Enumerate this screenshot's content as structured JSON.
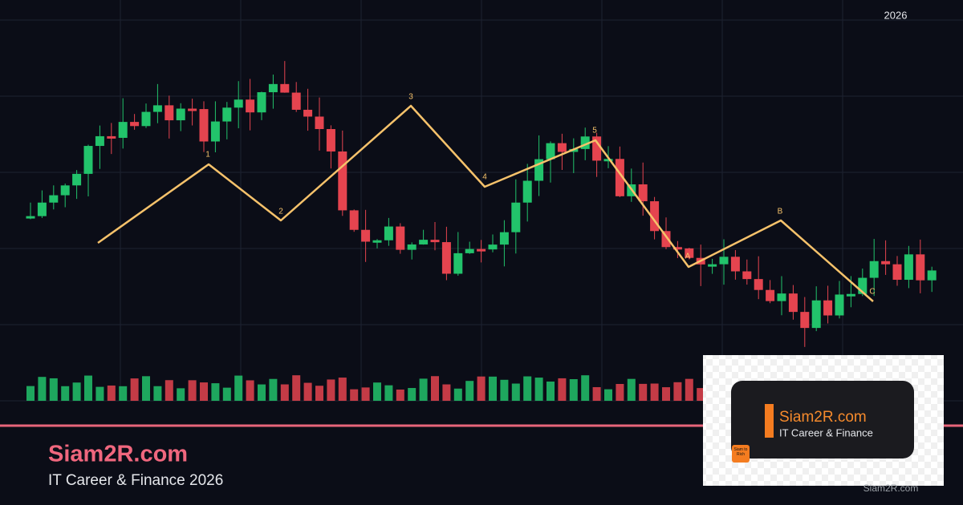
{
  "header": {
    "year": "2026"
  },
  "wave_labels": [
    "1",
    "2",
    "3",
    "4",
    "5",
    "A",
    "B",
    "C"
  ],
  "brand": {
    "name": "Siam2R.com",
    "tagline": "IT Career & Finance 2026"
  },
  "logo_card": {
    "name": "Siam2R.com",
    "tagline": "IT Career & Finance",
    "badge": "Siam to Rich"
  },
  "footer": "Siam2R.com"
}
